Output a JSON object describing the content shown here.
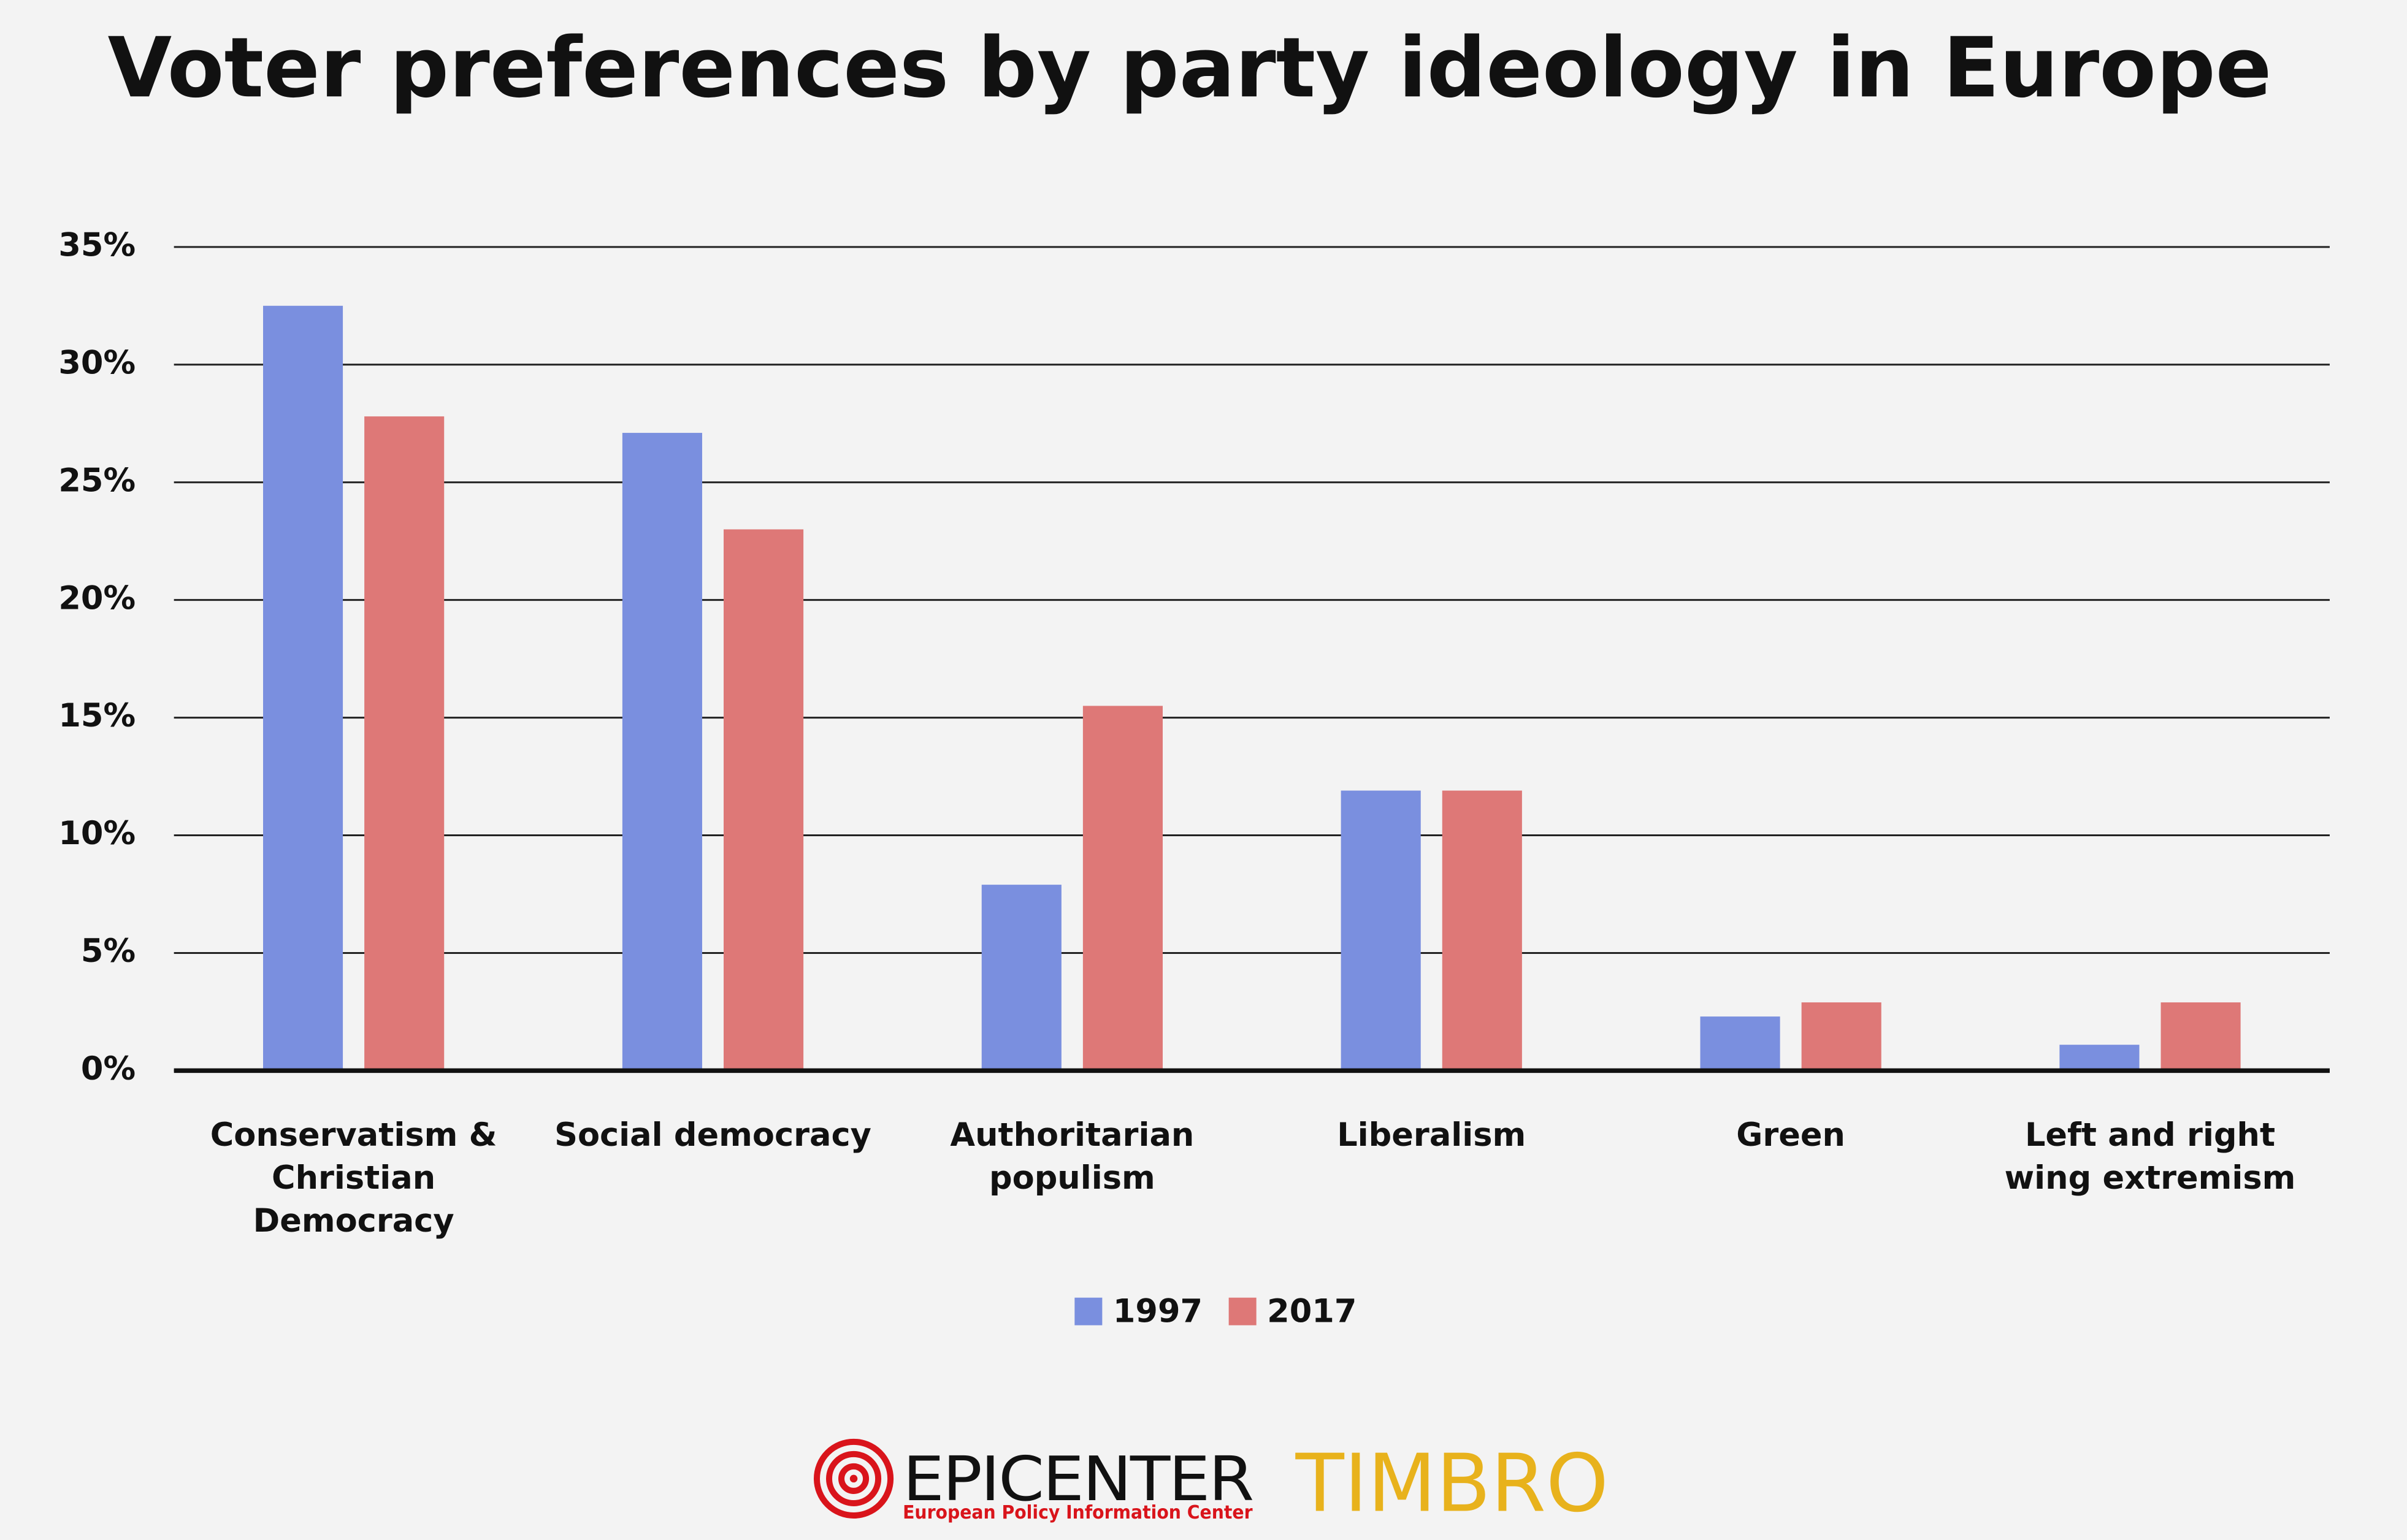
{
  "chart_data": {
    "type": "bar",
    "title": "Voter preferences by party ideology in Europe",
    "categories": [
      "Conservatism & Christian Democracy",
      "Social democracy",
      "Authoritarian populism",
      "Liberalism",
      "Green",
      "Left and right wing extremism"
    ],
    "series": [
      {
        "name": "1997",
        "color": "#7a8fdf",
        "values": [
          32.5,
          27.1,
          7.9,
          11.9,
          2.3,
          1.1
        ]
      },
      {
        "name": "2017",
        "color": "#de7877",
        "values": [
          27.8,
          23.0,
          15.5,
          11.9,
          2.9,
          2.9
        ]
      }
    ],
    "ylim": [
      0,
      35
    ],
    "yticks": [
      {
        "value": 0,
        "label": "0%"
      },
      {
        "value": 5,
        "label": "5%"
      },
      {
        "value": 10,
        "label": "10%"
      },
      {
        "value": 15,
        "label": "15%"
      },
      {
        "value": 20,
        "label": "20%"
      },
      {
        "value": 25,
        "label": "25%"
      },
      {
        "value": 30,
        "label": "30%"
      },
      {
        "value": 35,
        "label": "35%"
      }
    ],
    "grid": true,
    "legend": "bottom",
    "logos": {
      "epicenter": "EPICENTER",
      "epicenter_subtitle": "European Policy Information Center",
      "timbro": "TIMBRO"
    }
  }
}
